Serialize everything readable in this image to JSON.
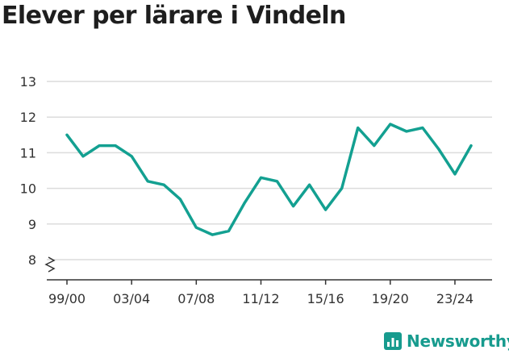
{
  "chart_data": {
    "type": "line",
    "title": "Elever per lärare i Vindeln",
    "xlabel": "",
    "ylabel": "",
    "x_tick_labels": [
      "99/00",
      "03/04",
      "07/08",
      "11/12",
      "15/16",
      "19/20",
      "23/24"
    ],
    "x": [
      "99/00",
      "00/01",
      "01/02",
      "02/03",
      "03/04",
      "04/05",
      "05/06",
      "06/07",
      "07/08",
      "08/09",
      "09/10",
      "10/11",
      "11/12",
      "12/13",
      "13/14",
      "14/15",
      "15/16",
      "16/17",
      "17/18",
      "18/19",
      "19/20",
      "20/21",
      "21/22",
      "22/23",
      "23/24",
      "24/25"
    ],
    "series": [
      {
        "values": [
          11.5,
          10.9,
          11.2,
          11.2,
          10.9,
          10.2,
          10.1,
          9.7,
          8.9,
          8.7,
          8.8,
          9.6,
          10.3,
          10.2,
          9.5,
          10.1,
          9.4,
          10.0,
          11.7,
          11.2,
          11.8,
          11.6,
          11.7,
          11.1,
          10.4,
          11.2
        ],
        "color": "#13a091"
      }
    ],
    "y_ticks": [
      8,
      9,
      10,
      11,
      12,
      13
    ],
    "ylim": [
      8,
      13
    ],
    "y_axis_break": true,
    "grid": true,
    "legend": "none"
  },
  "branding": {
    "name": "Newsworthy",
    "color": "#179b8e",
    "icon": "bar-chart-logo-icon"
  }
}
